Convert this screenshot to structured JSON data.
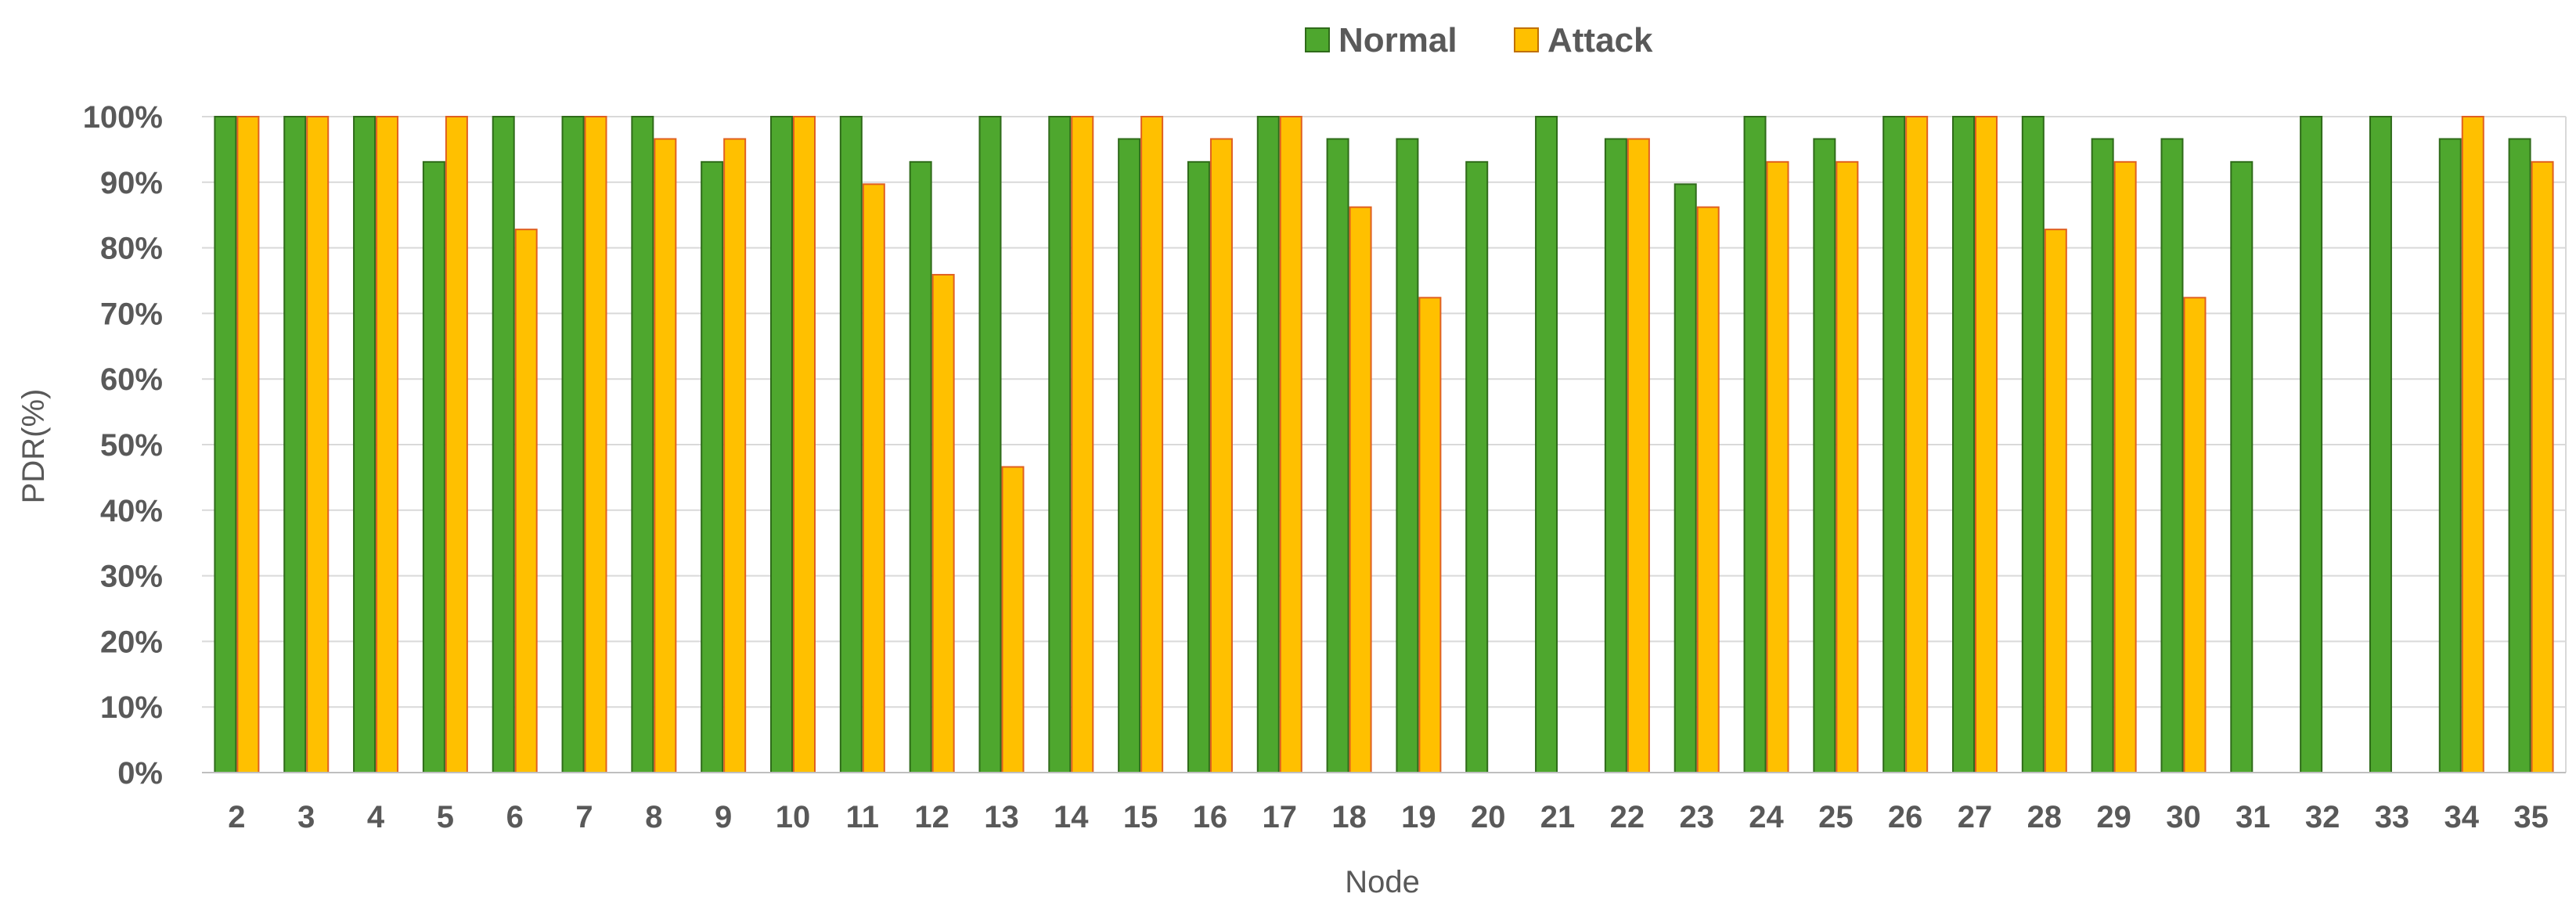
{
  "chart_data": {
    "type": "bar",
    "title": "",
    "xlabel": "Node",
    "ylabel": "PDR(%)",
    "ylim": [
      0,
      100
    ],
    "y_ticks": [
      "0%",
      "10%",
      "20%",
      "30%",
      "40%",
      "50%",
      "60%",
      "70%",
      "80%",
      "90%",
      "100%"
    ],
    "grid": true,
    "legend_position": "top-center",
    "categories": [
      "2",
      "3",
      "4",
      "5",
      "6",
      "7",
      "8",
      "9",
      "10",
      "11",
      "12",
      "13",
      "14",
      "15",
      "16",
      "17",
      "18",
      "19",
      "20",
      "21",
      "22",
      "23",
      "24",
      "25",
      "26",
      "27",
      "28",
      "29",
      "30",
      "31",
      "32",
      "33",
      "34",
      "35"
    ],
    "series": [
      {
        "name": "Normal",
        "color": "#4ea72e",
        "stroke": "#2f6b1a",
        "values": [
          100,
          100,
          100,
          93.1,
          100,
          100,
          100,
          93.1,
          100,
          100,
          93.1,
          100,
          100,
          96.6,
          93.1,
          100,
          96.6,
          96.6,
          93.1,
          100,
          96.6,
          89.7,
          100,
          96.6,
          100,
          100,
          100,
          96.6,
          96.6,
          93.1,
          100,
          100,
          96.6,
          96.6
        ]
      },
      {
        "name": "Attack",
        "color": "#ffc000",
        "stroke": "#e06020",
        "values": [
          100,
          100,
          100,
          100,
          82.8,
          100,
          96.6,
          96.6,
          100,
          89.7,
          75.9,
          46.6,
          100,
          100,
          96.6,
          100,
          86.2,
          72.4,
          0,
          0,
          96.6,
          86.2,
          93.1,
          93.1,
          100,
          100,
          82.8,
          93.1,
          72.4,
          0,
          0,
          0,
          100,
          93.1
        ]
      }
    ]
  }
}
